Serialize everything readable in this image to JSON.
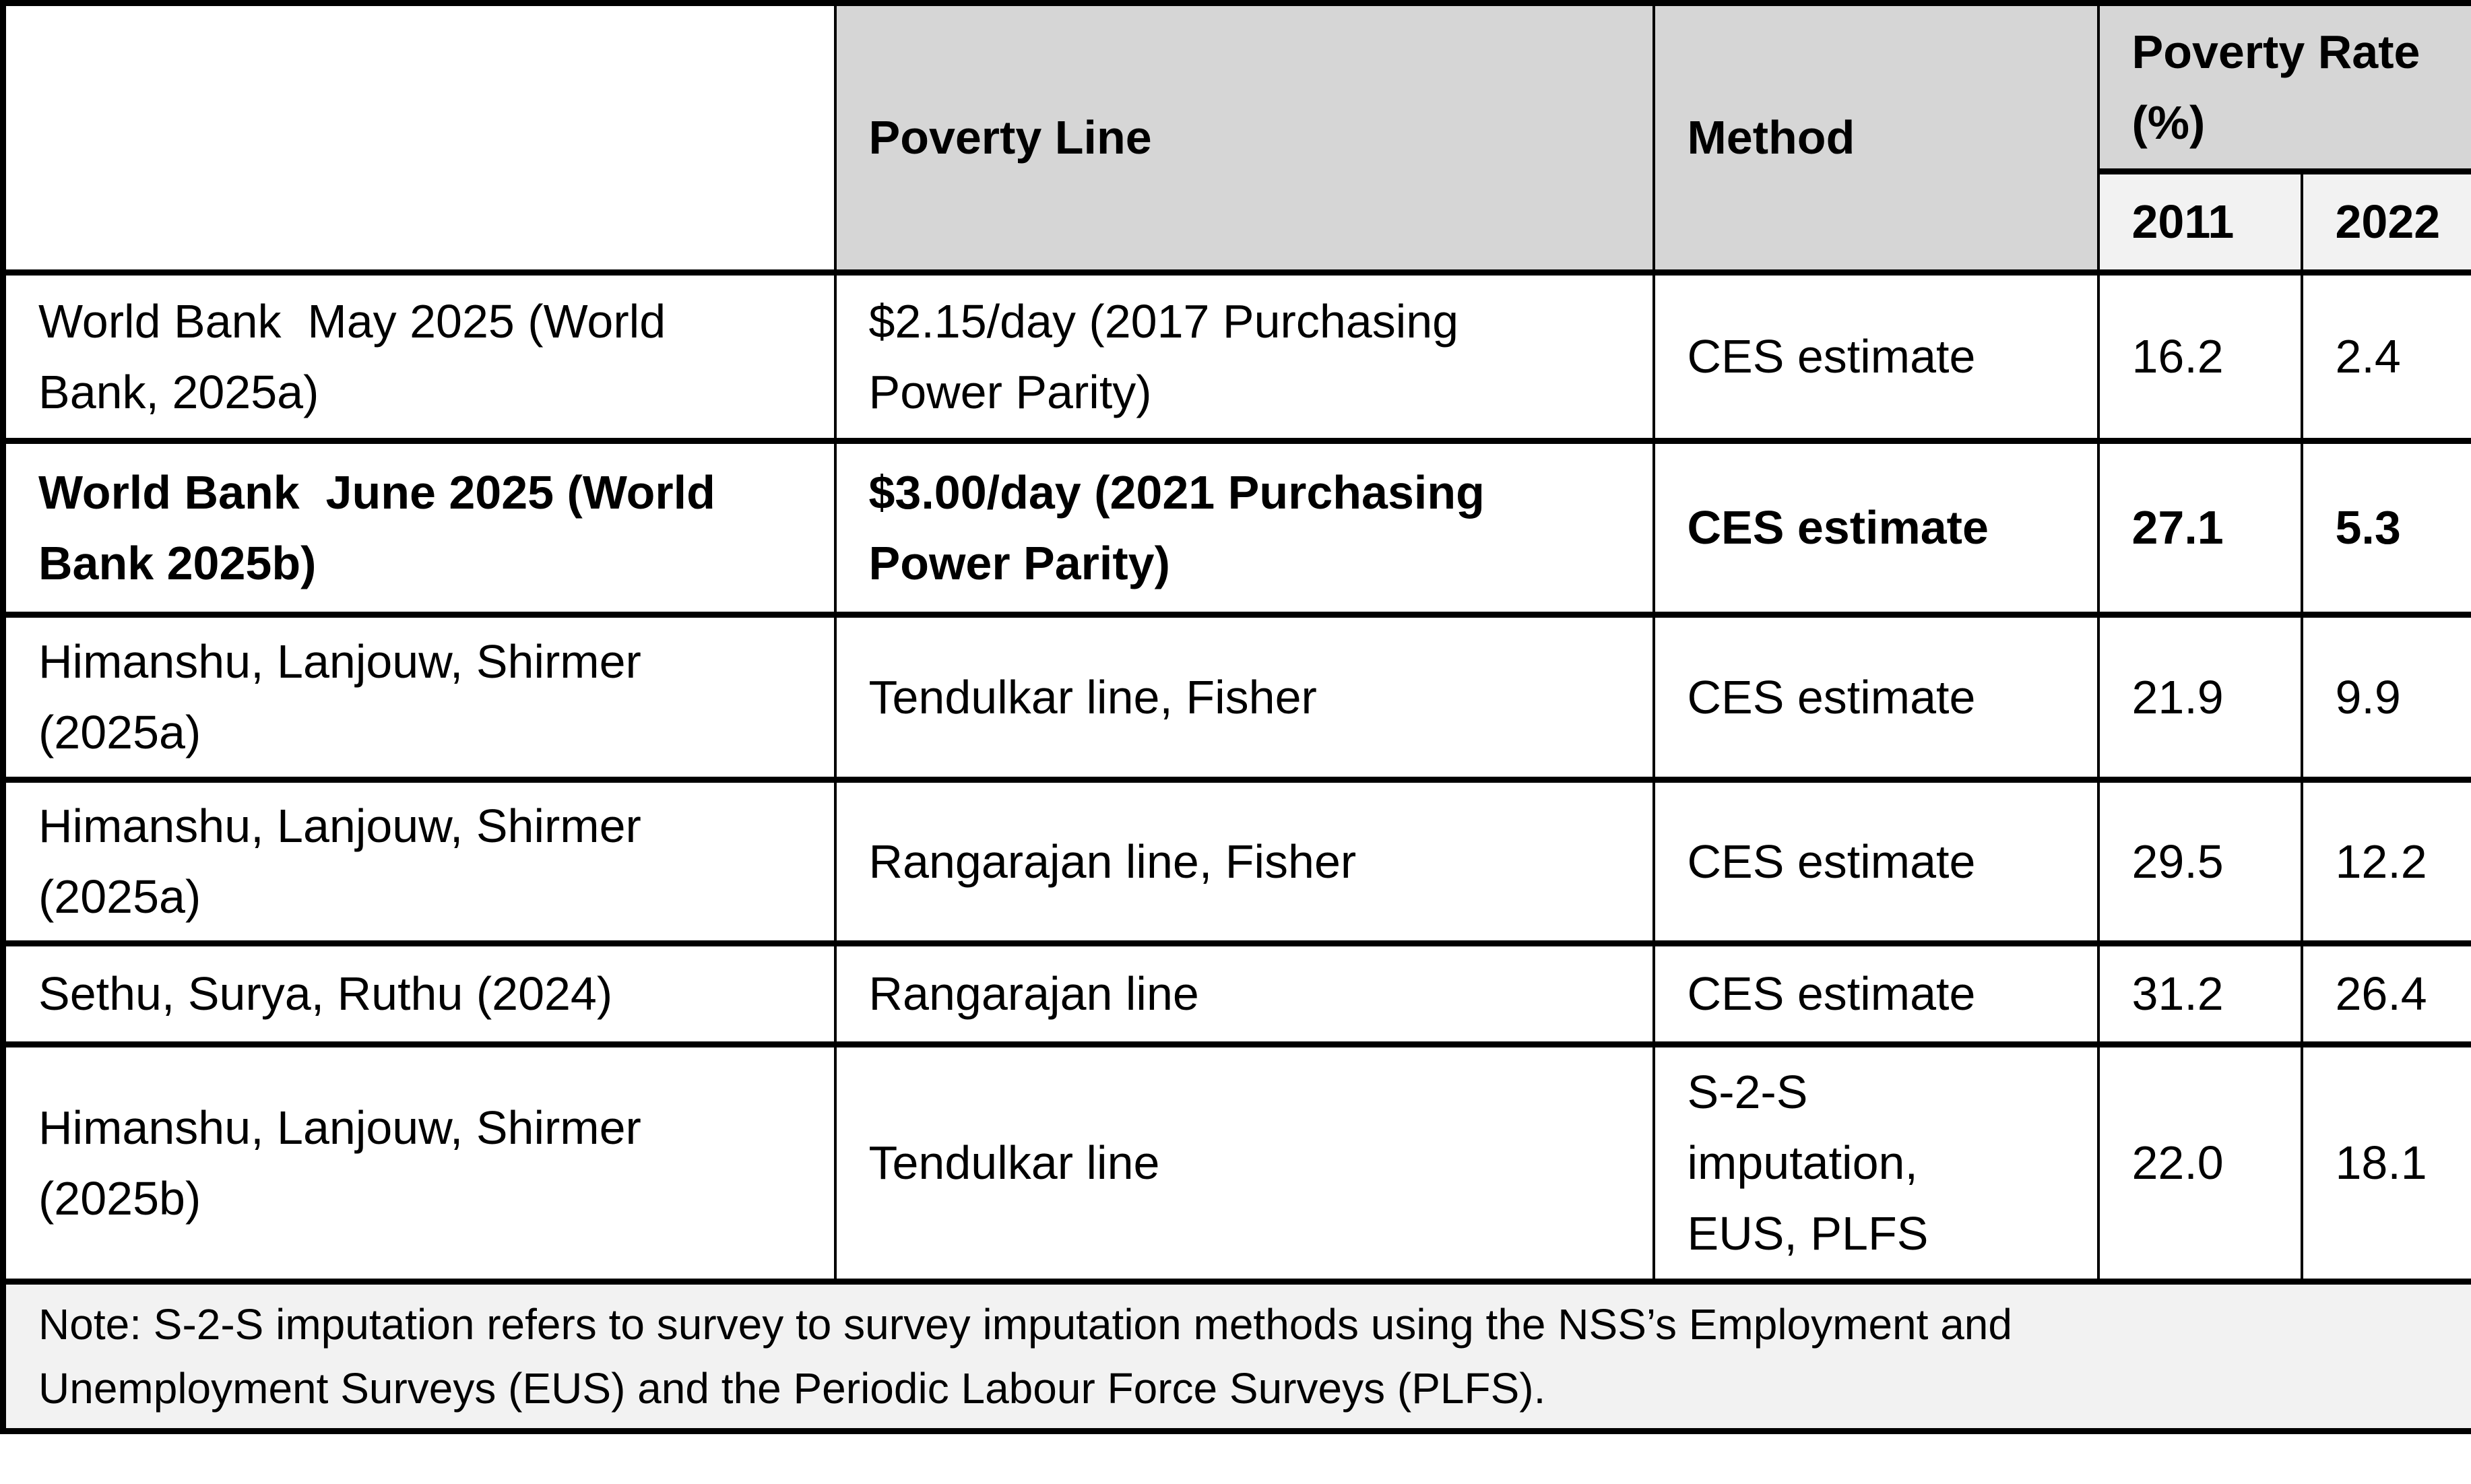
{
  "table": {
    "header": {
      "source_label": "",
      "poverty_line": "Poverty Line",
      "method": "Method",
      "poverty_rate": "Poverty Rate (%)",
      "year_2011": "2011",
      "year_2022": "2022"
    },
    "rows": [
      {
        "source": "World Bank  May 2025 (World\nBank, 2025a)",
        "poverty_line": "$2.15/day (2017 Purchasing\nPower Parity)",
        "method": "CES estimate",
        "rate_2011": "16.2",
        "rate_2022": "2.4",
        "emphasis": false
      },
      {
        "source": "World Bank  June 2025 (World\nBank 2025b)",
        "poverty_line": "$3.00/day (2021 Purchasing\nPower Parity)",
        "method": "CES estimate",
        "rate_2011": "27.1",
        "rate_2022": "5.3",
        "emphasis": true
      },
      {
        "source": "Himanshu, Lanjouw, Shirmer\n(2025a)",
        "poverty_line": "Tendulkar line, Fisher",
        "method": "CES estimate",
        "rate_2011": "21.9",
        "rate_2022": "9.9",
        "emphasis": false
      },
      {
        "source": "Himanshu, Lanjouw, Shirmer\n(2025a)",
        "poverty_line": "Rangarajan line, Fisher",
        "method": "CES estimate",
        "rate_2011": "29.5",
        "rate_2022": "12.2",
        "emphasis": false
      },
      {
        "source": "Sethu, Surya, Ruthu (2024)",
        "poverty_line": "Rangarajan line",
        "method": "CES estimate",
        "rate_2011": "31.2",
        "rate_2022": "26.4",
        "emphasis": false
      },
      {
        "source": "Himanshu, Lanjouw, Shirmer\n(2025b)",
        "poverty_line": "Tendulkar line",
        "method": "S-2-S\nimputation,\nEUS, PLFS",
        "rate_2011": "22.0",
        "rate_2022": "18.1",
        "emphasis": false
      }
    ],
    "note": "Note: S-2-S imputation refers to survey to survey imputation methods using the NSS’s Employment and\nUnemployment Surveys (EUS) and the Periodic Labour Force Surveys (PLFS)."
  },
  "colors": {
    "header_fill": "#d6d6d6",
    "subheader_fill": "#f2f2f2",
    "note_fill": "#f2f2f2",
    "border": "#000000",
    "text": "#000000",
    "background": "#ffffff"
  }
}
